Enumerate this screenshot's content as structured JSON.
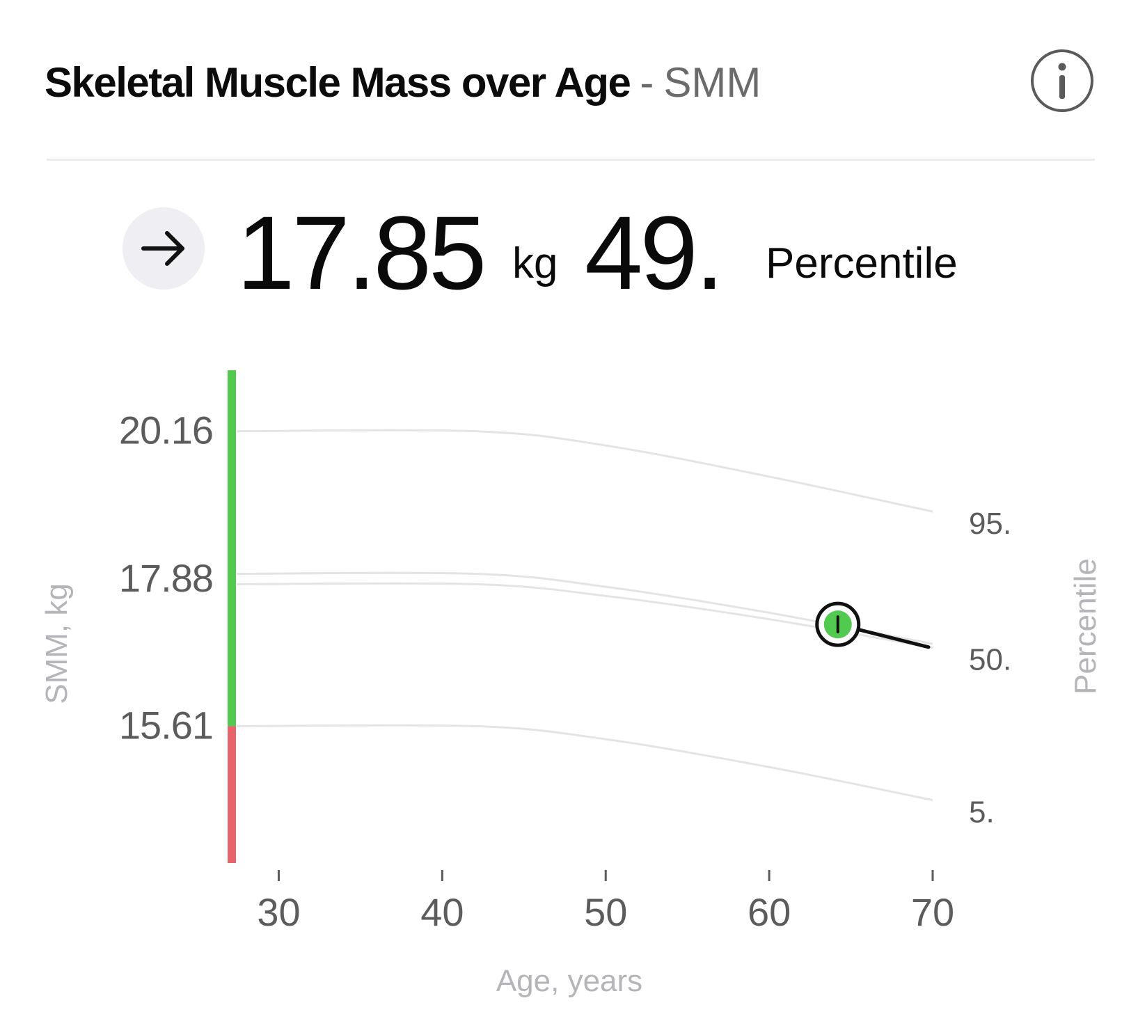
{
  "header": {
    "title": "Skeletal Muscle Mass over Age",
    "separator": "-",
    "abbreviation": "SMM",
    "info_icon": "info-icon"
  },
  "summary": {
    "trend_icon": "arrow-right-icon",
    "value": "17.85",
    "unit": "kg",
    "percentile_value": "49.",
    "percentile_label": "Percentile"
  },
  "chart_data": {
    "type": "line",
    "title": "Skeletal Muscle Mass over Age",
    "xlabel": "Age, years",
    "ylabel": "SMM, kg",
    "y2label": "Percentile",
    "xlim": [
      27,
      70
    ],
    "ylim": [
      13.5,
      21.1
    ],
    "x_ticks": [
      30,
      40,
      50,
      60,
      70
    ],
    "x_tick_labels": [
      "30",
      "40",
      "50",
      "60",
      "70"
    ],
    "y_ticks": [
      20.16,
      17.88,
      15.61
    ],
    "y_tick_labels": [
      "20.16",
      "17.88",
      "15.61"
    ],
    "status_bar": {
      "threshold": 15.61,
      "above_color": "#52c94f",
      "below_color": "#e8636a"
    },
    "series": [
      {
        "name": "95.",
        "x": [
          27,
          42,
          50,
          60,
          70
        ],
        "values": [
          20.16,
          20.16,
          19.94,
          19.46,
          18.92
        ]
      },
      {
        "name": "50. upper",
        "x": [
          27,
          42,
          50,
          60,
          70
        ],
        "values": [
          17.96,
          17.96,
          17.76,
          17.36,
          16.88
        ]
      },
      {
        "name": "50.",
        "x": [
          27,
          42,
          50,
          60,
          70
        ],
        "values": [
          17.8,
          17.8,
          17.62,
          17.26,
          16.82
        ]
      },
      {
        "name": "5.",
        "x": [
          27,
          42,
          50,
          60,
          70
        ],
        "values": [
          15.61,
          15.61,
          15.41,
          14.98,
          14.47
        ]
      }
    ],
    "percentile_labels": [
      "95.",
      "50.",
      "5."
    ],
    "measurement": {
      "name": "current",
      "age": 64.2,
      "value": 17.18,
      "trend_end_age": 70,
      "trend_end_value": 16.83,
      "color": "#52c94f"
    }
  }
}
